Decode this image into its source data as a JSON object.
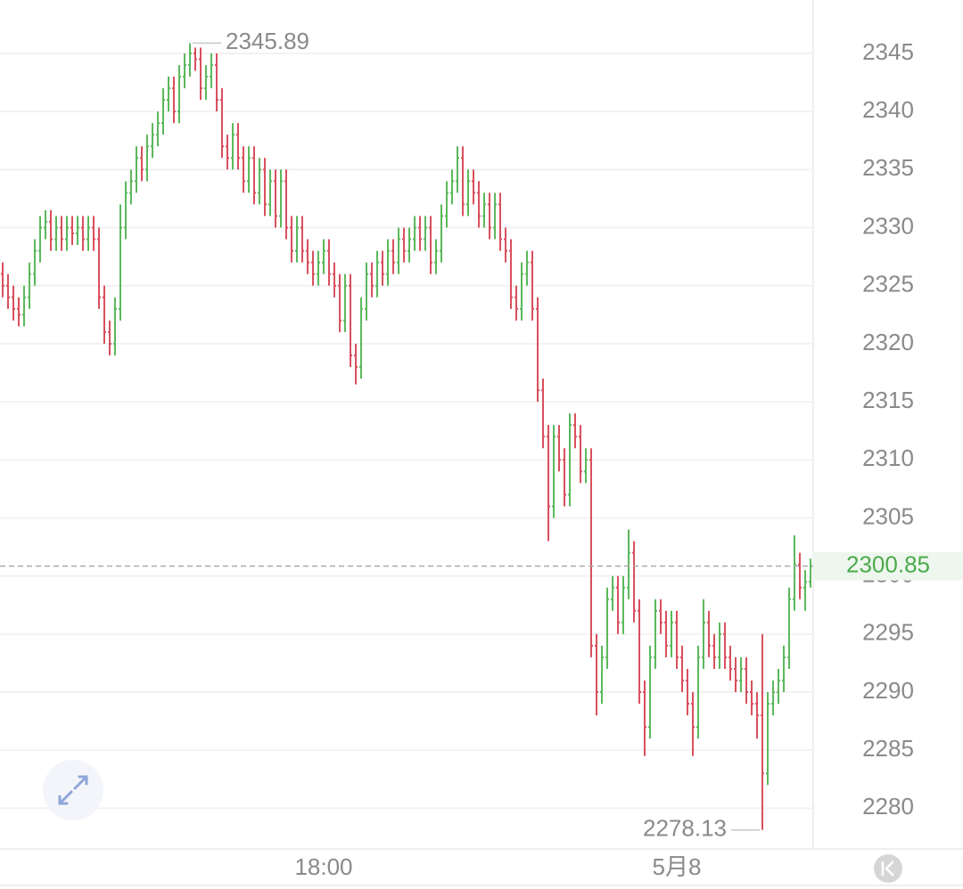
{
  "chart_data": {
    "type": "ohlc",
    "categories": [
      null,
      null,
      null,
      null,
      null,
      null,
      null,
      null,
      null,
      null,
      null,
      null,
      null,
      null,
      null,
      null,
      null,
      null,
      null,
      null,
      null,
      null,
      null,
      null,
      null,
      null,
      null,
      null,
      null,
      null,
      null,
      null,
      null,
      null,
      null,
      null,
      null,
      null,
      null,
      null,
      null,
      null,
      null,
      null,
      null,
      null,
      null,
      null,
      null,
      null,
      null,
      null,
      null,
      null,
      null,
      null,
      null,
      null,
      null,
      null,
      "18:00",
      null,
      null,
      null,
      null,
      null,
      null,
      null,
      null,
      null,
      null,
      null,
      null,
      null,
      null,
      null,
      null,
      null,
      null,
      null,
      null,
      null,
      null,
      null,
      null,
      null,
      null,
      null,
      null,
      null,
      null,
      null,
      null,
      null,
      null,
      null,
      null,
      null,
      null,
      null,
      null,
      null,
      null,
      null,
      null,
      null,
      null,
      null,
      null,
      null,
      null,
      null,
      null,
      null,
      null,
      null,
      null,
      null,
      null,
      null,
      null,
      null,
      null,
      null,
      null,
      null,
      "5月8",
      null,
      null,
      null,
      null,
      null,
      null,
      null,
      null,
      null,
      null,
      null,
      null,
      null,
      null,
      null,
      null,
      null,
      null,
      null,
      null,
      null,
      null,
      null,
      null,
      null
    ],
    "ohlc": [
      [
        2326,
        2327,
        2324,
        2325
      ],
      [
        2325,
        2326,
        2323,
        2324
      ],
      [
        2324,
        2325,
        2322,
        2323
      ],
      [
        2323,
        2324,
        2321.5,
        2322.5
      ],
      [
        2322.5,
        2325,
        2321.5,
        2324
      ],
      [
        2324,
        2327,
        2323,
        2326
      ],
      [
        2326,
        2329,
        2325,
        2328
      ],
      [
        2328,
        2331,
        2327,
        2330
      ],
      [
        2330,
        2331.5,
        2329,
        2330.5
      ],
      [
        2330.5,
        2331.5,
        2328,
        2329
      ],
      [
        2329,
        2331,
        2328,
        2330
      ],
      [
        2330,
        2331,
        2328,
        2329
      ],
      [
        2329,
        2331,
        2328,
        2330
      ],
      [
        2330,
        2331,
        2328.5,
        2329.5
      ],
      [
        2329.5,
        2331,
        2328.5,
        2330
      ],
      [
        2330,
        2331,
        2328,
        2329
      ],
      [
        2329,
        2331,
        2328,
        2330
      ],
      [
        2330,
        2331,
        2328,
        2329
      ],
      [
        2329,
        2330,
        2323,
        2324
      ],
      [
        2324,
        2325,
        2320,
        2321
      ],
      [
        2321,
        2322,
        2319,
        2320
      ],
      [
        2320,
        2324,
        2319,
        2323
      ],
      [
        2323,
        2332,
        2322,
        2330
      ],
      [
        2330,
        2334,
        2329,
        2333
      ],
      [
        2333,
        2335,
        2332,
        2334
      ],
      [
        2334,
        2337,
        2333,
        2336
      ],
      [
        2336,
        2337,
        2334,
        2335
      ],
      [
        2335,
        2338,
        2334,
        2337
      ],
      [
        2337,
        2339,
        2336,
        2338
      ],
      [
        2338,
        2340,
        2337,
        2339
      ],
      [
        2339,
        2342,
        2338,
        2341
      ],
      [
        2341,
        2343,
        2340,
        2342
      ],
      [
        2342,
        2343,
        2339,
        2340
      ],
      [
        2340,
        2344,
        2339,
        2343
      ],
      [
        2343,
        2345,
        2342,
        2344
      ],
      [
        2344,
        2345.89,
        2343,
        2345
      ],
      [
        2345,
        2345.5,
        2343.5,
        2344.5
      ],
      [
        2344.5,
        2345.5,
        2341,
        2342
      ],
      [
        2342,
        2344,
        2341,
        2343
      ],
      [
        2343,
        2345,
        2342,
        2344
      ],
      [
        2344,
        2345,
        2340,
        2341
      ],
      [
        2341,
        2342,
        2336,
        2337
      ],
      [
        2337,
        2338,
        2335,
        2336
      ],
      [
        2336,
        2339,
        2335,
        2338
      ],
      [
        2338,
        2339,
        2335,
        2336
      ],
      [
        2336,
        2337,
        2333,
        2334
      ],
      [
        2334,
        2337,
        2333,
        2336
      ],
      [
        2336,
        2337,
        2332,
        2333
      ],
      [
        2333,
        2336,
        2332,
        2335
      ],
      [
        2335,
        2336,
        2331,
        2332
      ],
      [
        2332,
        2335,
        2331,
        2334
      ],
      [
        2334,
        2335,
        2330,
        2331
      ],
      [
        2331,
        2335,
        2330,
        2334
      ],
      [
        2334,
        2335,
        2329,
        2330
      ],
      [
        2330,
        2331,
        2327,
        2328
      ],
      [
        2328,
        2331,
        2327,
        2330
      ],
      [
        2330,
        2331,
        2327,
        2328
      ],
      [
        2328,
        2329,
        2326,
        2327
      ],
      [
        2327,
        2328,
        2325,
        2326
      ],
      [
        2326,
        2328,
        2325,
        2327
      ],
      [
        2327,
        2329,
        2326,
        2328
      ],
      [
        2328,
        2329,
        2325,
        2326
      ],
      [
        2326,
        2327,
        2324,
        2325
      ],
      [
        2325,
        2326,
        2321,
        2322
      ],
      [
        2322,
        2326,
        2321,
        2325
      ],
      [
        2325,
        2326,
        2318,
        2319
      ],
      [
        2319,
        2320,
        2316.5,
        2318
      ],
      [
        2318,
        2324,
        2317,
        2323
      ],
      [
        2323,
        2327,
        2322,
        2326
      ],
      [
        2326,
        2327,
        2324,
        2325
      ],
      [
        2325,
        2328,
        2324,
        2327
      ],
      [
        2327,
        2328,
        2325,
        2326
      ],
      [
        2326,
        2329,
        2325,
        2328
      ],
      [
        2328,
        2329,
        2326,
        2327
      ],
      [
        2327,
        2330,
        2326,
        2329
      ],
      [
        2329,
        2330,
        2327,
        2328
      ],
      [
        2328,
        2330,
        2327,
        2329
      ],
      [
        2329,
        2331,
        2328,
        2330
      ],
      [
        2330,
        2331,
        2328,
        2329
      ],
      [
        2329,
        2331,
        2328,
        2330
      ],
      [
        2330,
        2331,
        2326,
        2327
      ],
      [
        2327,
        2329,
        2326,
        2328
      ],
      [
        2328,
        2332,
        2327,
        2331
      ],
      [
        2331,
        2334,
        2330,
        2333
      ],
      [
        2333,
        2335,
        2332,
        2334
      ],
      [
        2334,
        2337,
        2333,
        2336
      ],
      [
        2336,
        2337,
        2331,
        2332
      ],
      [
        2332,
        2335,
        2331,
        2334
      ],
      [
        2334,
        2335,
        2332,
        2333
      ],
      [
        2333,
        2334,
        2330,
        2331
      ],
      [
        2331,
        2333,
        2330,
        2332
      ],
      [
        2332,
        2333,
        2329,
        2330
      ],
      [
        2330,
        2333,
        2329,
        2332
      ],
      [
        2332,
        2333,
        2328,
        2329
      ],
      [
        2329,
        2330,
        2327,
        2328
      ],
      [
        2328,
        2329,
        2323,
        2324
      ],
      [
        2324,
        2325,
        2322,
        2323
      ],
      [
        2323,
        2327,
        2322,
        2326
      ],
      [
        2326,
        2328,
        2325,
        2327
      ],
      [
        2327,
        2328,
        2322,
        2323
      ],
      [
        2323,
        2324,
        2315,
        2316
      ],
      [
        2316,
        2317,
        2311,
        2312
      ],
      [
        2312,
        2313,
        2303,
        2306
      ],
      [
        2306,
        2313,
        2305,
        2312
      ],
      [
        2312,
        2313,
        2309,
        2310
      ],
      [
        2310,
        2311,
        2306,
        2307
      ],
      [
        2307,
        2314,
        2306,
        2313
      ],
      [
        2313,
        2314,
        2311,
        2312
      ],
      [
        2312,
        2313,
        2308,
        2309
      ],
      [
        2309,
        2311,
        2308,
        2310
      ],
      [
        2310,
        2311,
        2293,
        2294
      ],
      [
        2294,
        2295,
        2288,
        2290
      ],
      [
        2290,
        2294,
        2289,
        2293
      ],
      [
        2293,
        2299,
        2292,
        2298
      ],
      [
        2298,
        2300,
        2297,
        2299
      ],
      [
        2299,
        2300,
        2295,
        2296
      ],
      [
        2296,
        2300,
        2295,
        2299
      ],
      [
        2299,
        2304,
        2298,
        2302
      ],
      [
        2302,
        2303,
        2296,
        2297
      ],
      [
        2297,
        2298,
        2289,
        2290
      ],
      [
        2290,
        2291,
        2284.5,
        2287
      ],
      [
        2287,
        2294,
        2286,
        2293
      ],
      [
        2293,
        2298,
        2292,
        2297
      ],
      [
        2297,
        2298,
        2295,
        2296
      ],
      [
        2296,
        2297,
        2293,
        2294
      ],
      [
        2294,
        2297,
        2293,
        2296
      ],
      [
        2296,
        2297,
        2292,
        2293
      ],
      [
        2293,
        2294,
        2290,
        2291
      ],
      [
        2291,
        2292,
        2288,
        2289
      ],
      [
        2289,
        2290,
        2284.5,
        2287
      ],
      [
        2287,
        2294,
        2286,
        2293
      ],
      [
        2293,
        2298,
        2292,
        2296
      ],
      [
        2296,
        2297,
        2293,
        2294
      ],
      [
        2294,
        2295,
        2292,
        2293
      ],
      [
        2293,
        2296,
        2292,
        2295
      ],
      [
        2295,
        2296,
        2292,
        2293
      ],
      [
        2293,
        2294,
        2291,
        2292
      ],
      [
        2292,
        2293,
        2290,
        2291
      ],
      [
        2291,
        2293,
        2290,
        2292
      ],
      [
        2292,
        2293,
        2289,
        2290
      ],
      [
        2290,
        2291,
        2288,
        2289
      ],
      [
        2289,
        2290,
        2286,
        2288
      ],
      [
        2288,
        2295,
        2278.13,
        2283
      ],
      [
        2283,
        2290,
        2282,
        2289
      ],
      [
        2289,
        2291,
        2288,
        2290
      ],
      [
        2290,
        2292,
        2289,
        2291
      ],
      [
        2291,
        2294,
        2290,
        2293
      ],
      [
        2293,
        2299,
        2292,
        2298
      ],
      [
        2298,
        2303.5,
        2297,
        2301
      ],
      [
        2301,
        2302,
        2298,
        2299
      ],
      [
        2299,
        2300.5,
        2297,
        2299.5
      ],
      [
        2299.5,
        2301.5,
        2299,
        2300.85
      ]
    ],
    "ylim": [
      2276.5,
      2349.6
    ],
    "yticks": [
      2280,
      2285,
      2290,
      2295,
      2300,
      2305,
      2310,
      2315,
      2320,
      2325,
      2330,
      2335,
      2340,
      2345
    ],
    "grid": true,
    "up_color": "#5cb85c",
    "down_color": "#d9505e",
    "last_price_color": "#4caa4c"
  }
}
